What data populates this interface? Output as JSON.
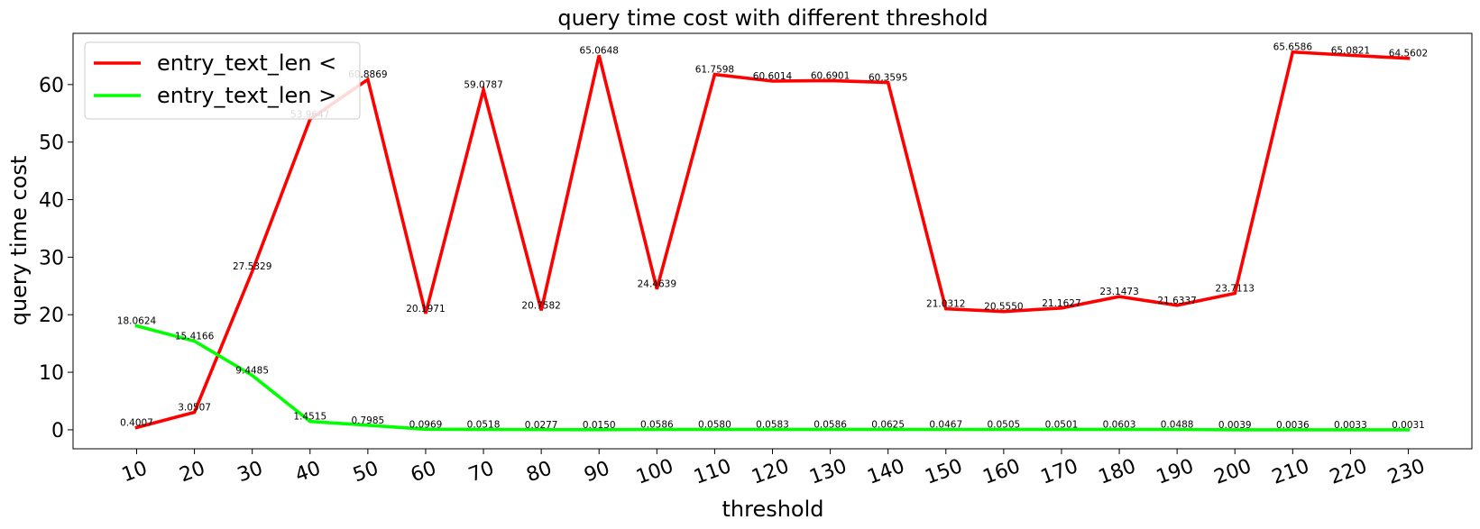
{
  "chart_data": {
    "type": "line",
    "title": "query time cost with different threshold",
    "xlabel": "threshold",
    "ylabel": "query time cost",
    "x": [
      10,
      20,
      30,
      40,
      50,
      60,
      70,
      80,
      90,
      100,
      110,
      120,
      130,
      140,
      150,
      160,
      170,
      180,
      190,
      200,
      210,
      220,
      230
    ],
    "x_tick_labels": [
      "10",
      "20",
      "30",
      "40",
      "50",
      "60",
      "70",
      "80",
      "90",
      "100",
      "110",
      "120",
      "130",
      "140",
      "150",
      "160",
      "170",
      "180",
      "190",
      "200",
      "210",
      "220",
      "230"
    ],
    "y_ticks": [
      0,
      10,
      20,
      30,
      40,
      50,
      60
    ],
    "y_tick_labels": [
      "0",
      "10",
      "20",
      "30",
      "40",
      "50",
      "60"
    ],
    "ylim": [
      -3.3,
      68.9
    ],
    "xlim": [
      -1,
      241
    ],
    "grid": false,
    "legend_position": "top-left",
    "series": [
      {
        "name": "entry_text_len <",
        "color": "#ff0000",
        "values": [
          0.4007,
          3.0507,
          27.5329,
          53.9647,
          60.8869,
          20.1971,
          59.0787,
          20.7582,
          65.0648,
          24.4639,
          61.7598,
          60.6014,
          60.6901,
          60.3595,
          21.0312,
          20.555,
          21.1627,
          23.1473,
          21.6337,
          23.7113,
          65.6586,
          65.0821,
          64.5602
        ],
        "labels": [
          "0.4007",
          "3.0507",
          "27.5329",
          "53.9647",
          "60.8869",
          "20.1971",
          "59.0787",
          "20.7582",
          "65.0648",
          "24.4639",
          "61.7598",
          "60.6014",
          "60.6901",
          "60.3595",
          "21.0312",
          "20.5550",
          "21.1627",
          "23.1473",
          "21.6337",
          "23.7113",
          "65.6586",
          "65.0821",
          "64.5602"
        ]
      },
      {
        "name": "entry_text_len >",
        "color": "#00ff00",
        "values": [
          18.0624,
          15.4166,
          9.4485,
          1.4515,
          0.7985,
          0.0969,
          0.0518,
          0.0277,
          0.015,
          0.0586,
          0.058,
          0.0583,
          0.0586,
          0.0625,
          0.0467,
          0.0505,
          0.0501,
          0.0603,
          0.0488,
          0.0039,
          0.0036,
          0.0033,
          0.0031
        ],
        "labels": [
          "18.0624",
          "15.4166",
          "9.4485",
          "1.4515",
          "0.7985",
          "0.0969",
          "0.0518",
          "0.0277",
          "0.0150",
          "0.0586",
          "0.0580",
          "0.0583",
          "0.0586",
          "0.0625",
          "0.0467",
          "0.0505",
          "0.0501",
          "0.0603",
          "0.0488",
          "0.0039",
          "0.0036",
          "0.0033",
          "0.0031"
        ]
      }
    ]
  }
}
